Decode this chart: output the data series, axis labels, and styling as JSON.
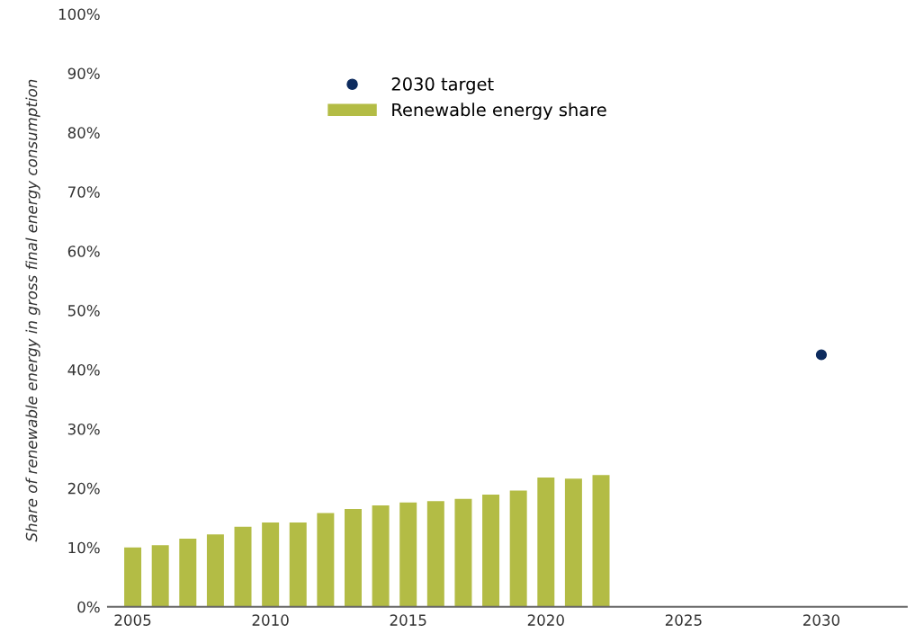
{
  "chart_data": {
    "type": "bar",
    "ylabel": "Share of renewable energy in gross final energy consumption",
    "series": [
      {
        "name": "2030 target",
        "type": "scatter",
        "color": "#0d2b5e",
        "x": [
          2030
        ],
        "values": [
          42.5
        ]
      },
      {
        "name": "Renewable energy share",
        "color": "#b3bc45",
        "x": [
          2005,
          2006,
          2007,
          2008,
          2009,
          2010,
          2011,
          2012,
          2013,
          2014,
          2015,
          2016,
          2017,
          2018,
          2019,
          2020,
          2021,
          2022
        ],
        "values": [
          10.0,
          10.4,
          11.5,
          12.2,
          13.5,
          14.2,
          14.2,
          15.8,
          16.5,
          17.1,
          17.6,
          17.8,
          18.2,
          18.9,
          19.6,
          21.8,
          21.6,
          22.2
        ]
      }
    ],
    "xlim": [
      2004.1,
      2033.1
    ],
    "xticks": [
      2005,
      2010,
      2015,
      2020,
      2025,
      2030
    ],
    "ylim": [
      0,
      100
    ],
    "yticks": [
      {
        "value": 0,
        "label": "0%"
      },
      {
        "value": 10,
        "label": "10%"
      },
      {
        "value": 20,
        "label": "20%"
      },
      {
        "value": 30,
        "label": "30%"
      },
      {
        "value": 40,
        "label": "40%"
      },
      {
        "value": 50,
        "label": "50%"
      },
      {
        "value": 60,
        "label": "60%"
      },
      {
        "value": 70,
        "label": "70%"
      },
      {
        "value": 80,
        "label": "80%"
      },
      {
        "value": 90,
        "label": "90%"
      },
      {
        "value": 100,
        "label": "100%"
      }
    ],
    "grid": false,
    "legend": "top",
    "marker": "circle"
  }
}
